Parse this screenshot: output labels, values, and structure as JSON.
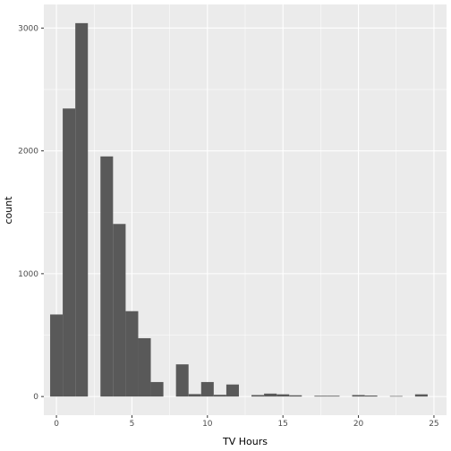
{
  "chart_data": {
    "type": "bar",
    "xlabel": "TV Hours",
    "ylabel": "count",
    "xlim": [
      -0.833,
      25.833
    ],
    "ylim": [
      -152,
      3192
    ],
    "bin_width": 0.833,
    "x_ticks": [
      0,
      5,
      10,
      15,
      20,
      25
    ],
    "y_ticks": [
      0,
      1000,
      2000,
      3000
    ],
    "grid": true,
    "bins": [
      {
        "x": 0.0,
        "count": 668
      },
      {
        "x": 0.833,
        "count": 2345
      },
      {
        "x": 1.667,
        "count": 3040
      },
      {
        "x": 2.5,
        "count": 0
      },
      {
        "x": 3.333,
        "count": 1955
      },
      {
        "x": 4.167,
        "count": 1405
      },
      {
        "x": 5.0,
        "count": 695
      },
      {
        "x": 5.833,
        "count": 475
      },
      {
        "x": 6.667,
        "count": 118
      },
      {
        "x": 7.5,
        "count": 0
      },
      {
        "x": 8.333,
        "count": 262
      },
      {
        "x": 9.167,
        "count": 20
      },
      {
        "x": 10.0,
        "count": 118
      },
      {
        "x": 10.833,
        "count": 14
      },
      {
        "x": 11.667,
        "count": 98
      },
      {
        "x": 12.5,
        "count": 0
      },
      {
        "x": 13.333,
        "count": 12
      },
      {
        "x": 14.167,
        "count": 24
      },
      {
        "x": 15.0,
        "count": 18
      },
      {
        "x": 15.833,
        "count": 10
      },
      {
        "x": 16.667,
        "count": 0
      },
      {
        "x": 17.5,
        "count": 6
      },
      {
        "x": 18.333,
        "count": 6
      },
      {
        "x": 19.167,
        "count": 0
      },
      {
        "x": 20.0,
        "count": 12
      },
      {
        "x": 20.833,
        "count": 8
      },
      {
        "x": 21.667,
        "count": 0
      },
      {
        "x": 22.5,
        "count": 4
      },
      {
        "x": 23.333,
        "count": 0
      },
      {
        "x": 24.167,
        "count": 18
      }
    ],
    "colors": {
      "panel": "#ebebeb",
      "grid_major": "#ffffff",
      "bar": "#595959"
    }
  }
}
